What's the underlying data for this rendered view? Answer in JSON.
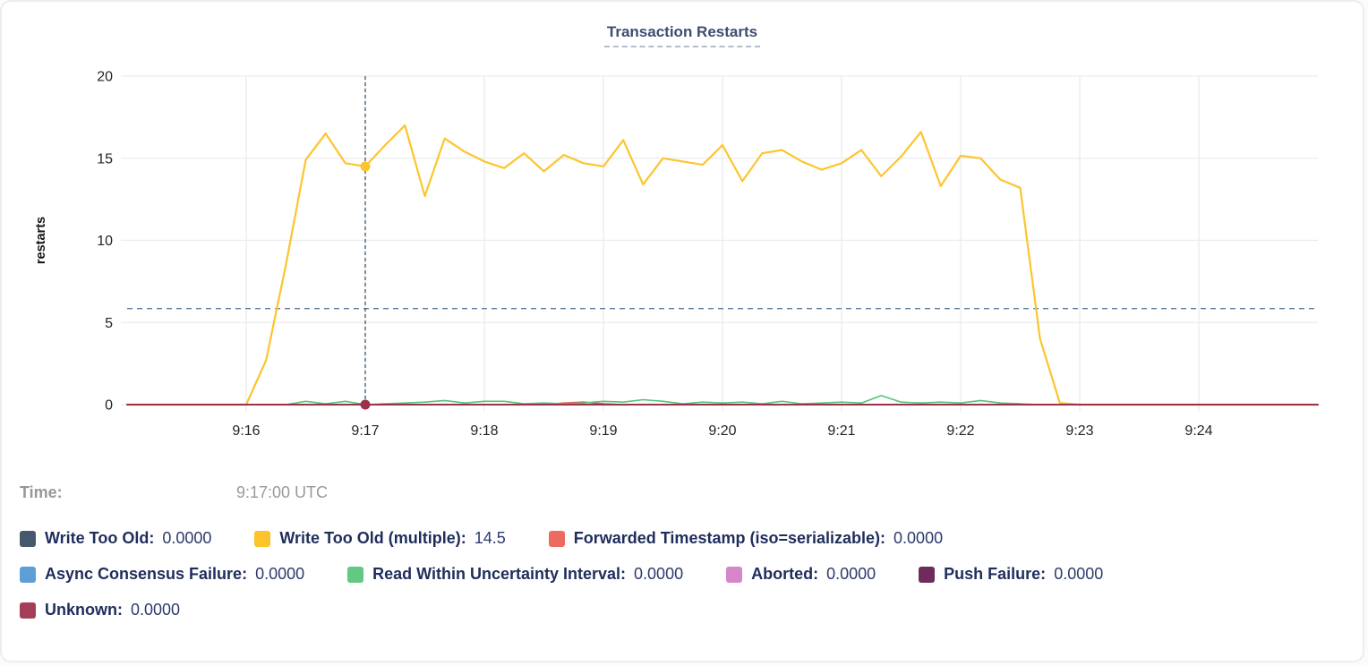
{
  "chart": {
    "title": "Transaction Restarts",
    "time_label": "Time:",
    "time_value": "9:17:00 UTC"
  },
  "chart_data": {
    "type": "line",
    "title": "Transaction Restarts",
    "xlabel": "",
    "ylabel": "restarts",
    "ylim": [
      0,
      20
    ],
    "y_ticks": [
      0,
      5,
      10,
      15,
      20
    ],
    "x_ticks": [
      "9:16",
      "9:17",
      "9:18",
      "9:19",
      "9:20",
      "9:21",
      "9:22",
      "9:23",
      "9:24"
    ],
    "x_start": "9:15:00 UTC",
    "x_end": "9:25:00 UTC",
    "x_step_seconds": 10,
    "grid": true,
    "legend_position": "bottom",
    "hover": {
      "index": 12,
      "time": "9:17:00 UTC",
      "x_tick": "9:17",
      "guide_value": 5.85,
      "points": [
        {
          "series": "Write Too Old (multiple)",
          "value": 14.5
        },
        {
          "series": "Unknown",
          "value": 0
        }
      ]
    },
    "series": [
      {
        "name": "Write Too Old",
        "color": "#47586e",
        "constant": 0,
        "width": 1.5
      },
      {
        "name": "Async Consensus Failure",
        "color": "#5c9fd6",
        "constant": 0,
        "width": 1.5
      },
      {
        "name": "Aborted",
        "color": "#d687cb",
        "constant": 0,
        "width": 1.5
      },
      {
        "name": "Push Failure",
        "color": "#6f2b5e",
        "constant": 0,
        "width": 1.5
      },
      {
        "name": "Forwarded Timestamp (iso=serializable)",
        "color": "#e2574c",
        "width": 1.6,
        "values": [
          0,
          0,
          0,
          0,
          0,
          0,
          0,
          0,
          0,
          0,
          0,
          0,
          0,
          0,
          0,
          0,
          0,
          0,
          0,
          0,
          0,
          0,
          0.1,
          0.15,
          0.05,
          0,
          0,
          0,
          0,
          0,
          0,
          0,
          0,
          0,
          0,
          0,
          0,
          0,
          0,
          0,
          0,
          0,
          0,
          0,
          0,
          0,
          0,
          0,
          0,
          0,
          0,
          0,
          0,
          0,
          0,
          0,
          0,
          0,
          0,
          0,
          0
        ]
      },
      {
        "name": "Read Within Uncertainty Interval",
        "color": "#52c478",
        "width": 1.6,
        "values": [
          0,
          0,
          0,
          0,
          0,
          0,
          0,
          0,
          0,
          0.2,
          0.05,
          0.2,
          0,
          0.05,
          0.1,
          0.15,
          0.25,
          0.1,
          0.2,
          0.2,
          0.05,
          0.1,
          0.05,
          0.1,
          0.2,
          0.15,
          0.3,
          0.2,
          0.05,
          0.15,
          0.1,
          0.15,
          0.05,
          0.2,
          0.05,
          0.1,
          0.15,
          0.1,
          0.55,
          0.15,
          0.1,
          0.15,
          0.1,
          0.25,
          0.1,
          0.05,
          0,
          0,
          0,
          0,
          0,
          0,
          0,
          0,
          0,
          0,
          0,
          0,
          0,
          0,
          0
        ]
      },
      {
        "name": "Write Too Old (multiple)",
        "color": "#fdc42e",
        "width": 2.2,
        "values": [
          0,
          0,
          0,
          0,
          0,
          0,
          0,
          2.7,
          8.5,
          14.9,
          16.5,
          14.7,
          14.5,
          15.8,
          17,
          12.7,
          16.2,
          15.4,
          14.8,
          14.4,
          15.3,
          14.2,
          15.2,
          14.7,
          14.5,
          16.1,
          13.4,
          15,
          14.8,
          14.6,
          15.8,
          13.6,
          15.3,
          15.5,
          14.8,
          14.3,
          14.7,
          15.5,
          13.9,
          15.1,
          16.6,
          13.3,
          15.15,
          15,
          13.7,
          13.2,
          4,
          0.1,
          0,
          0,
          0,
          0,
          0,
          0,
          0,
          0,
          0,
          0,
          0,
          0,
          0
        ]
      },
      {
        "name": "Unknown",
        "color": "#9b3247",
        "constant": 0,
        "width": 2
      }
    ]
  },
  "legend": {
    "rows": [
      [
        {
          "name": "write-too-old",
          "label": "Write Too Old:",
          "value": "0.0000",
          "color": "#47586e"
        },
        {
          "name": "write-too-old-multiple",
          "label": "Write Too Old (multiple):",
          "value": "14.5",
          "color": "#fcc32b"
        },
        {
          "name": "forwarded-timestamp",
          "label": "Forwarded Timestamp (iso=serializable):",
          "value": "0.0000",
          "color": "#ec6a5f"
        }
      ],
      [
        {
          "name": "async-consensus-failure",
          "label": "Async Consensus Failure:",
          "value": "0.0000",
          "color": "#5c9fd6"
        },
        {
          "name": "read-within-uncertainty-interval",
          "label": "Read Within Uncertainty Interval:",
          "value": "0.0000",
          "color": "#63c882"
        },
        {
          "name": "aborted",
          "label": "Aborted:",
          "value": "0.0000",
          "color": "#d687cb"
        },
        {
          "name": "push-failure",
          "label": "Push Failure:",
          "value": "0.0000",
          "color": "#6f2b5e"
        }
      ],
      [
        {
          "name": "unknown",
          "label": "Unknown:",
          "value": "0.0000",
          "color": "#a23f57"
        }
      ]
    ]
  }
}
